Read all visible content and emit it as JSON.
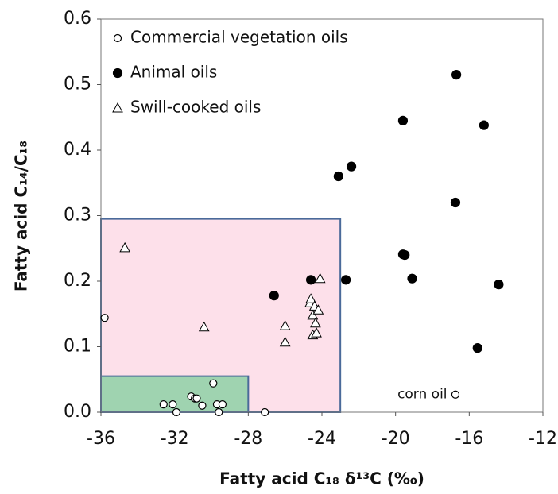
{
  "chart_data": {
    "type": "scatter",
    "xlabel": "Fatty acid C₁₈ δ¹³C (‰)",
    "ylabel": "Fatty acid C₁₄/C₁₈",
    "xlim": [
      -36,
      -12
    ],
    "xticks": [
      -36,
      -32,
      -28,
      -24,
      -20,
      -16,
      -12
    ],
    "ylim": [
      0,
      0.6
    ],
    "yticks": [
      {
        "value": 0,
        "label": "0.0"
      },
      0.1,
      0.2,
      0.3,
      0.4,
      0.5,
      0.6
    ],
    "legend": "top-left",
    "regions": [
      {
        "xlim": [
          -36,
          -23
        ],
        "ylim": [
          0,
          0.295
        ],
        "color": "#fde0ea"
      },
      {
        "xlim": [
          -36,
          -28
        ],
        "ylim": [
          0,
          0.055
        ],
        "color": "#9fd3b0"
      }
    ],
    "series": [
      {
        "name": "Commercial vegetation oils",
        "marker": "circle-open",
        "color": "#000000",
        "x": [
          -35.8,
          -32.6,
          -32.1,
          -31.9,
          -31.1,
          -30.9,
          -30.8,
          -30.5,
          -29.9,
          -29.7,
          -29.6,
          -29.4,
          -27.1,
          -16.75
        ],
        "values": [
          0.144,
          0.012,
          0.012,
          0,
          0.024,
          0.021,
          0.021,
          0.01,
          0.044,
          0.012,
          0,
          0.012,
          0,
          0.027
        ]
      },
      {
        "name": "Animal oils",
        "marker": "circle-filled",
        "color": "#000000",
        "x": [
          -16.7,
          -19.6,
          -15.2,
          -22.4,
          -23.1,
          -16.75,
          -19.6,
          -19.5,
          -22.7,
          -19.1,
          -14.4,
          -15.55,
          -26.6,
          -24.6
        ],
        "values": [
          0.515,
          0.445,
          0.438,
          0.375,
          0.36,
          0.32,
          0.241,
          0.24,
          0.202,
          0.204,
          0.195,
          0.098,
          0.178,
          0.202
        ]
      },
      {
        "name": "Swill-cooked oils",
        "marker": "triangle-open",
        "color": "#000000",
        "x": [
          -34.7,
          -30.4,
          -26.0,
          -26.0,
          -24.1,
          -24.65,
          -24.6,
          -24.4,
          -24.5,
          -24.35,
          -24.2,
          -24.5,
          -24.3
        ],
        "values": [
          0.251,
          0.13,
          0.132,
          0.107,
          0.204,
          0.167,
          0.173,
          0.162,
          0.148,
          0.136,
          0.156,
          0.118,
          0.121
        ]
      }
    ],
    "annotations": [
      {
        "text": "corn oil",
        "x": -17.2,
        "y": 0.027
      }
    ]
  }
}
